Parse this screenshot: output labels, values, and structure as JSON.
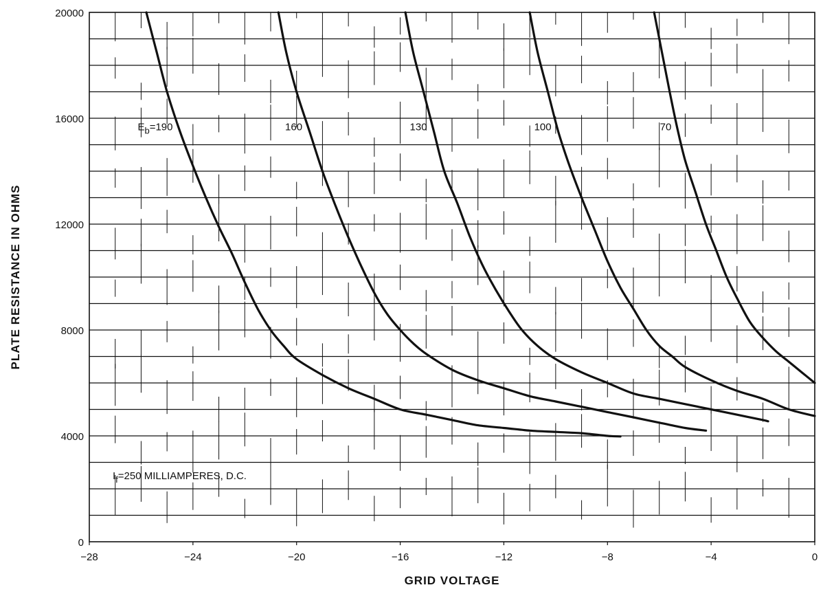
{
  "chart_data": {
    "type": "line",
    "title": "",
    "xlabel": "GRID VOLTAGE",
    "ylabel": "PLATE RESISTANCE IN OHMS",
    "xlim": [
      -28,
      0
    ],
    "ylim": [
      0,
      20000
    ],
    "xticks": [
      -28,
      -24,
      -20,
      -16,
      -12,
      -8,
      -4,
      0
    ],
    "xtick_labels": [
      "−28",
      "−24",
      "−20",
      "−16",
      "−12",
      "−8",
      "−4",
      "0"
    ],
    "yticks": [
      0,
      4000,
      8000,
      12000,
      16000,
      20000
    ],
    "ytick_labels": [
      "0",
      "4000",
      "8000",
      "12000",
      "16000",
      "20000"
    ],
    "grid": true,
    "annotation": {
      "prefix": "I",
      "sub": "f",
      "text": "=250 MILLIAMPERES, D.C."
    },
    "series": [
      {
        "name": "190",
        "label": {
          "prefix": "E",
          "sub": "b",
          "text": "=190"
        },
        "points": [
          [
            -25.8,
            20000
          ],
          [
            -25.4,
            18500
          ],
          [
            -25,
            17000
          ],
          [
            -24.5,
            15500
          ],
          [
            -24,
            14200
          ],
          [
            -23.5,
            13000
          ],
          [
            -23,
            11900
          ],
          [
            -22.5,
            10900
          ],
          [
            -22,
            9800
          ],
          [
            -21.5,
            8800
          ],
          [
            -21,
            8000
          ],
          [
            -20.5,
            7400
          ],
          [
            -20,
            6900
          ],
          [
            -19,
            6300
          ],
          [
            -18,
            5800
          ],
          [
            -17,
            5400
          ],
          [
            -16,
            5000
          ],
          [
            -15,
            4800
          ],
          [
            -14,
            4600
          ],
          [
            -13,
            4400
          ],
          [
            -12,
            4300
          ],
          [
            -11,
            4200
          ],
          [
            -10,
            4150
          ],
          [
            -9,
            4100
          ],
          [
            -8,
            4000
          ],
          [
            -7.5,
            3980
          ]
        ]
      },
      {
        "name": "160",
        "label": {
          "text": "160"
        },
        "points": [
          [
            -20.7,
            20000
          ],
          [
            -20.4,
            18500
          ],
          [
            -20,
            17000
          ],
          [
            -19.5,
            15500
          ],
          [
            -19,
            14000
          ],
          [
            -18.5,
            12700
          ],
          [
            -18,
            11500
          ],
          [
            -17.5,
            10400
          ],
          [
            -17,
            9400
          ],
          [
            -16.5,
            8600
          ],
          [
            -16,
            8000
          ],
          [
            -15.5,
            7500
          ],
          [
            -15,
            7100
          ],
          [
            -14,
            6500
          ],
          [
            -13,
            6100
          ],
          [
            -12,
            5800
          ],
          [
            -11,
            5500
          ],
          [
            -10,
            5300
          ],
          [
            -9,
            5100
          ],
          [
            -8,
            4900
          ],
          [
            -7,
            4700
          ],
          [
            -6,
            4500
          ],
          [
            -5,
            4300
          ],
          [
            -4.2,
            4200
          ]
        ]
      },
      {
        "name": "130",
        "label": {
          "text": "130"
        },
        "points": [
          [
            -15.8,
            20000
          ],
          [
            -15.5,
            18500
          ],
          [
            -15.1,
            17000
          ],
          [
            -14.7,
            15500
          ],
          [
            -14.3,
            14000
          ],
          [
            -13.8,
            12800
          ],
          [
            -13.3,
            11500
          ],
          [
            -12.8,
            10400
          ],
          [
            -12.3,
            9500
          ],
          [
            -11.8,
            8700
          ],
          [
            -11.3,
            8000
          ],
          [
            -10.7,
            7400
          ],
          [
            -10,
            6900
          ],
          [
            -9,
            6400
          ],
          [
            -8,
            6000
          ],
          [
            -7,
            5600
          ],
          [
            -6,
            5400
          ],
          [
            -5,
            5200
          ],
          [
            -4,
            5000
          ],
          [
            -3,
            4800
          ],
          [
            -2,
            4600
          ],
          [
            -1.8,
            4550
          ]
        ]
      },
      {
        "name": "100",
        "label": {
          "text": "100"
        },
        "points": [
          [
            -11,
            20000
          ],
          [
            -10.7,
            18500
          ],
          [
            -10.3,
            17000
          ],
          [
            -9.9,
            15500
          ],
          [
            -9.5,
            14300
          ],
          [
            -9,
            13000
          ],
          [
            -8.5,
            11800
          ],
          [
            -8,
            10600
          ],
          [
            -7.5,
            9600
          ],
          [
            -7,
            8800
          ],
          [
            -6.5,
            8000
          ],
          [
            -6,
            7400
          ],
          [
            -5.5,
            7000
          ],
          [
            -5,
            6600
          ],
          [
            -4,
            6100
          ],
          [
            -3,
            5700
          ],
          [
            -2,
            5400
          ],
          [
            -1,
            5000
          ],
          [
            0,
            4750
          ]
        ]
      },
      {
        "name": "70",
        "label": {
          "text": "70"
        },
        "points": [
          [
            -6.2,
            20000
          ],
          [
            -5.9,
            18500
          ],
          [
            -5.6,
            17000
          ],
          [
            -5.3,
            15600
          ],
          [
            -5,
            14400
          ],
          [
            -4.6,
            13200
          ],
          [
            -4.2,
            12000
          ],
          [
            -3.8,
            11000
          ],
          [
            -3.4,
            10000
          ],
          [
            -3,
            9200
          ],
          [
            -2.5,
            8300
          ],
          [
            -2,
            7700
          ],
          [
            -1.5,
            7200
          ],
          [
            -1,
            6800
          ],
          [
            -0.5,
            6400
          ],
          [
            0,
            6000
          ]
        ]
      }
    ]
  }
}
